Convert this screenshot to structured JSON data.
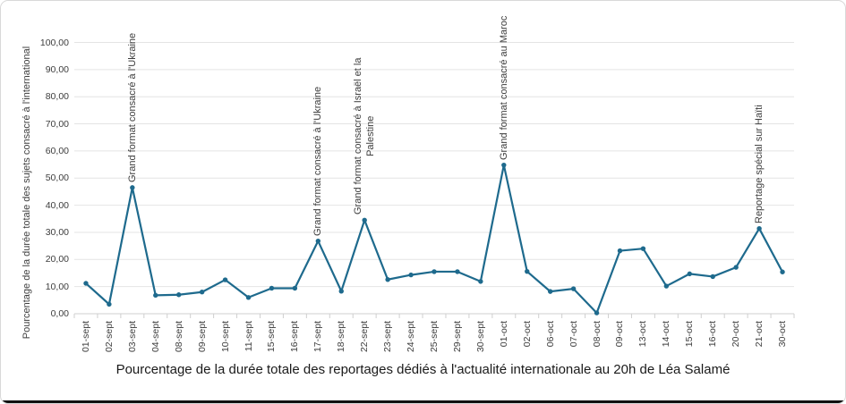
{
  "chart_data": {
    "type": "line",
    "title": "Pourcentage de la durée totale des reportages dédiés à l'actualité internationale au 20h de Léa Salamé",
    "xlabel": "",
    "ylabel": "Pourcentage de la durée totale des sujets consacré à l'international",
    "ylim": [
      0,
      100
    ],
    "ytick_step": 10,
    "ytick_labels": [
      "0,00",
      "10,00",
      "20,00",
      "30,00",
      "40,00",
      "50,00",
      "60,00",
      "70,00",
      "80,00",
      "90,00",
      "100,00"
    ],
    "grid": true,
    "legend": "none",
    "categories": [
      "01-sept",
      "02-sept",
      "03-sept",
      "04-sept",
      "08-sept",
      "09-sept",
      "10-sept",
      "11-sept",
      "15-sept",
      "16-sept",
      "17-sept",
      "18-sept",
      "22-sept",
      "23-sept",
      "24-sept",
      "25-sept",
      "29-sept",
      "30-sept",
      "01-oct",
      "02-oct",
      "06-oct",
      "07-oct",
      "08-oct",
      "09-oct",
      "13-oct",
      "14-oct",
      "15-oct",
      "16-oct",
      "20-oct",
      "21-oct",
      "30-oct"
    ],
    "series": [
      {
        "name": "Pourcentage de la durée totale des sujets consacré à l'international",
        "values": [
          11.2,
          3.5,
          46.5,
          6.8,
          7.0,
          8.0,
          12.5,
          6.0,
          9.4,
          9.4,
          26.8,
          8.3,
          34.5,
          12.6,
          14.3,
          15.5,
          15.5,
          11.9,
          54.8,
          15.6,
          8.2,
          9.2,
          0.3,
          23.2,
          24.0,
          10.2,
          14.7,
          13.7,
          17.1,
          31.4,
          15.4
        ]
      }
    ],
    "annotations": [
      {
        "index": 2,
        "lines": [
          "Grand format consacré à l'Ukraine"
        ]
      },
      {
        "index": 10,
        "lines": [
          "Grand format consacré à l'Ukraine"
        ]
      },
      {
        "index": 12,
        "lines": [
          "Grand format consacré à Israël et la",
          "Palestine"
        ]
      },
      {
        "index": 18,
        "lines": [
          "Grand format consacré au Maroc"
        ]
      },
      {
        "index": 29,
        "lines": [
          "Reportage spécial sur Haïti"
        ]
      }
    ],
    "colors": {
      "line": "#1e6a8d",
      "marker": "#1e6a8d",
      "gridline": "#e4e4e4",
      "axis": "#cfcfcf",
      "tick_text": "#3d3d3d",
      "title_text": "#1a1a1a"
    }
  }
}
